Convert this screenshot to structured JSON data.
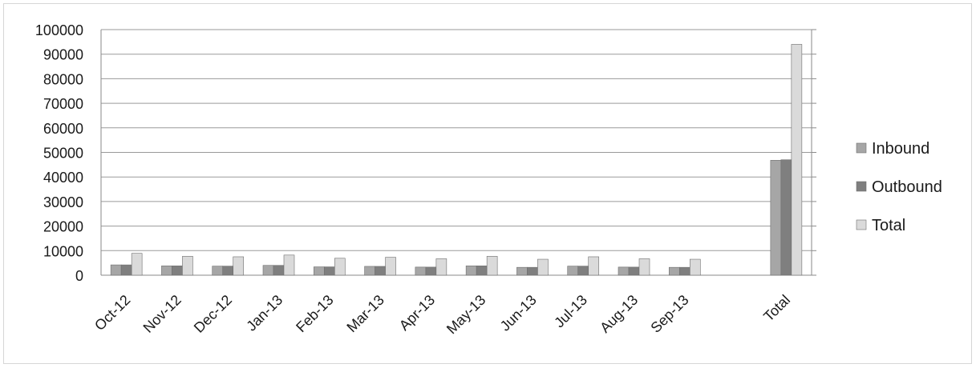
{
  "chart_data": {
    "type": "bar",
    "title": "",
    "xlabel": "",
    "ylabel": "",
    "categories": [
      "Oct-12",
      "Nov-12",
      "Dec-12",
      "Jan-13",
      "Feb-13",
      "Mar-13",
      "Apr-13",
      "May-13",
      "Jun-13",
      "Jul-13",
      "Aug-13",
      "Sep-13",
      "",
      "Total"
    ],
    "series": [
      {
        "name": "Inbound",
        "color": "#a6a6a6",
        "values": [
          4200,
          3800,
          3700,
          4000,
          3400,
          3600,
          3300,
          3800,
          3200,
          3700,
          3300,
          3200,
          null,
          46800
        ]
      },
      {
        "name": "Outbound",
        "color": "#7f7f7f",
        "values": [
          4200,
          3800,
          3700,
          4000,
          3400,
          3600,
          3300,
          3800,
          3200,
          3700,
          3300,
          3200,
          null,
          47000
        ]
      },
      {
        "name": "Total",
        "color": "#dadada",
        "values": [
          8900,
          7700,
          7500,
          8200,
          6900,
          7300,
          6700,
          7700,
          6500,
          7500,
          6700,
          6500,
          null,
          94000
        ]
      }
    ],
    "ylim": [
      0,
      100000
    ],
    "yticks": [
      0,
      10000,
      20000,
      30000,
      40000,
      50000,
      60000,
      70000,
      80000,
      90000,
      100000
    ],
    "grid": true,
    "legend_position": "right"
  }
}
